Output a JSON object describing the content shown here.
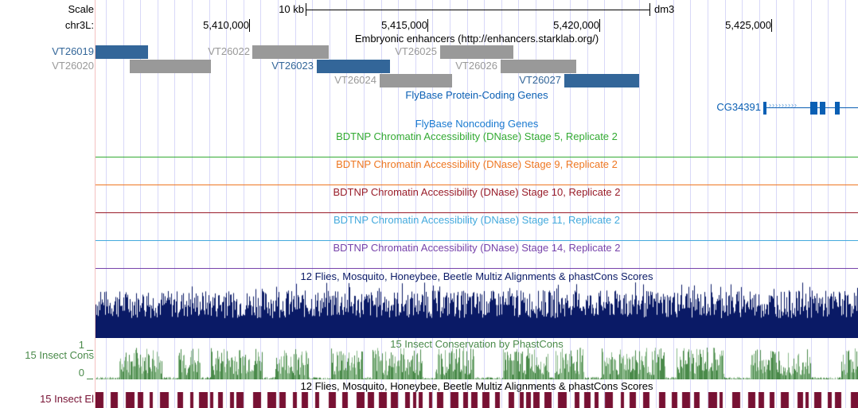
{
  "ruler": {
    "scale_label": "Scale",
    "scale_bar_label": "10 kb",
    "assembly": "dm3",
    "chrom_label": "chr3L:",
    "positions": [
      "5,410,000",
      "5,415,000",
      "5,420,000",
      "5,425,000"
    ]
  },
  "enhancers": {
    "title": "Embryonic enhancers (http://enhancers.starklab.org/)",
    "items": [
      {
        "name": "VT26019",
        "color": "#336699"
      },
      {
        "name": "VT26022",
        "color": "#999999"
      },
      {
        "name": "VT26025",
        "color": "#999999"
      },
      {
        "name": "VT26020",
        "color": "#999999"
      },
      {
        "name": "VT26023",
        "color": "#336699"
      },
      {
        "name": "VT26026",
        "color": "#999999"
      },
      {
        "name": "VT26024",
        "color": "#999999"
      },
      {
        "name": "VT26027",
        "color": "#336699"
      }
    ]
  },
  "protein_genes": {
    "title": "FlyBase Protein-Coding Genes",
    "gene": "CG34391",
    "color": "#0a5fb4"
  },
  "noncoding_genes": {
    "title": "FlyBase Noncoding Genes"
  },
  "dnase": [
    {
      "title": "BDTNP Chromatin Accessibility (DNase) Stage 5, Replicate 2",
      "color": "#33aa33"
    },
    {
      "title": "BDTNP Chromatin Accessibility (DNase) Stage 9, Replicate 2",
      "color": "#ee7722"
    },
    {
      "title": "BDTNP Chromatin Accessibility (DNase) Stage 10, Replicate 2",
      "color": "#991d2a"
    },
    {
      "title": "BDTNP Chromatin Accessibility (DNase) Stage 11, Replicate 2",
      "color": "#44aadd"
    },
    {
      "title": "BDTNP Chromatin Accessibility (DNase) Stage 14, Replicate 2",
      "color": "#7744aa"
    }
  ],
  "multiz": {
    "title": "12 Flies, Mosquito, Honeybee, Beetle Multiz Alignments & phastCons Scores",
    "color": "#0a1a66"
  },
  "cons": {
    "title": "15 Insect Conservation by PhastCons",
    "label": "15 Insect Cons",
    "ymax": "1",
    "ymin": "0",
    "color": "#4a8a4a"
  },
  "multiz2": {
    "title": "12 Flies, Mosquito, Honeybee, Beetle Multiz Alignments & phastCons Scores"
  },
  "elements": {
    "label": "15 Insect El",
    "color": "#771133"
  }
}
